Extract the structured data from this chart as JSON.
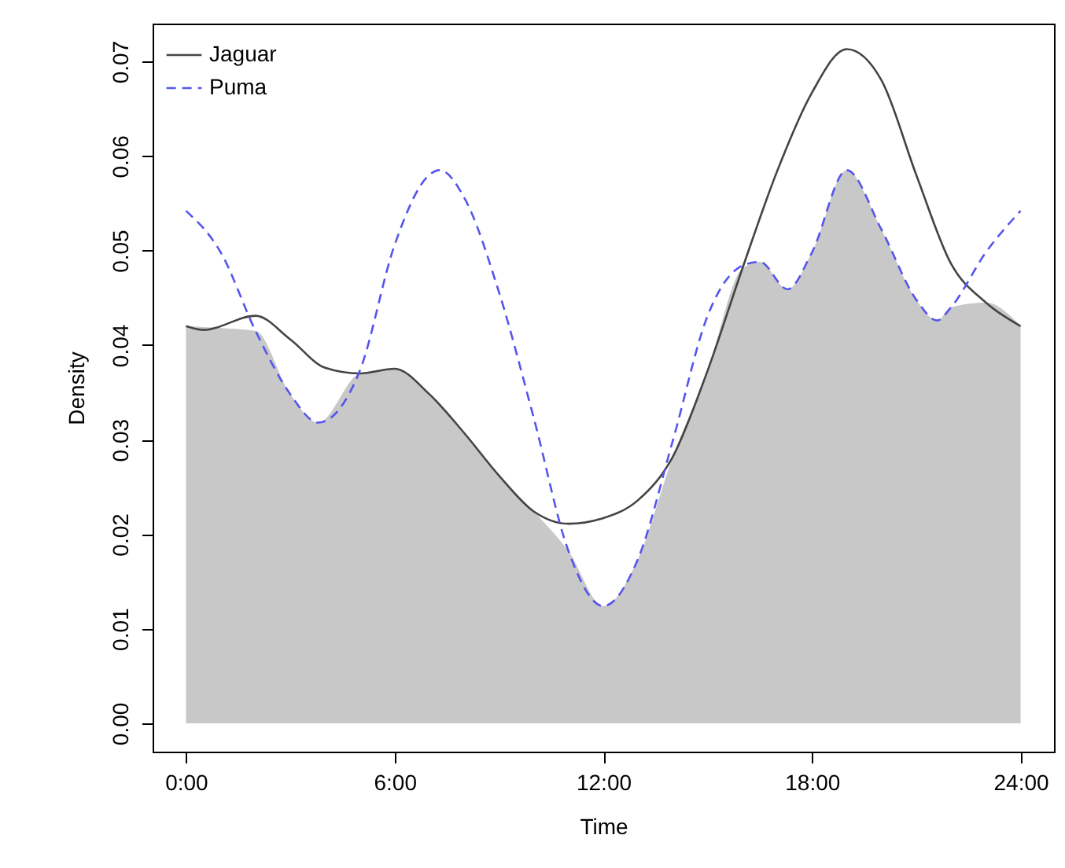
{
  "chart_data": {
    "type": "line",
    "xlabel": "Time",
    "ylabel": "Density",
    "xlim": [
      -0.96,
      24.96
    ],
    "ylim": [
      -0.003,
      0.074
    ],
    "xticks": [
      {
        "value": 0,
        "label": "0:00"
      },
      {
        "value": 6,
        "label": "6:00"
      },
      {
        "value": 12,
        "label": "12:00"
      },
      {
        "value": 18,
        "label": "18:00"
      },
      {
        "value": 24,
        "label": "24:00"
      }
    ],
    "yticks": [
      {
        "value": 0,
        "label": "0.00"
      },
      {
        "value": 0.01,
        "label": "0.01"
      },
      {
        "value": 0.02,
        "label": "0.02"
      },
      {
        "value": 0.03,
        "label": "0.03"
      },
      {
        "value": 0.04,
        "label": "0.04"
      },
      {
        "value": 0.05,
        "label": "0.05"
      },
      {
        "value": 0.06,
        "label": "0.06"
      },
      {
        "value": 0.07,
        "label": "0.07"
      }
    ],
    "grid": false,
    "legend": "top left",
    "series": [
      {
        "type": "area",
        "color": "#c8c8c8",
        "x": [
          0,
          1,
          2,
          3,
          3.8,
          5,
          6,
          7,
          8,
          9,
          10,
          11,
          12,
          13,
          14,
          15,
          16,
          16.5,
          17.3,
          18,
          19,
          20,
          21,
          21.6,
          22,
          23,
          24
        ],
        "values": [
          0.042,
          0.0418,
          0.0415,
          0.0348,
          0.0318,
          0.037,
          0.0375,
          0.0348,
          0.0307,
          0.0262,
          0.0224,
          0.0182,
          0.0124,
          0.0174,
          0.0282,
          0.0373,
          0.0481,
          0.0488,
          0.0459,
          0.0498,
          0.0585,
          0.0522,
          0.0448,
          0.0426,
          0.044,
          0.0445,
          0.042
        ]
      },
      {
        "name": "Jaguar",
        "color": "#444444",
        "line_style": "solid",
        "x": [
          0,
          0.5,
          2,
          3,
          4,
          5,
          6,
          7,
          8,
          9,
          10,
          11,
          12,
          13,
          14,
          15,
          16,
          17,
          18,
          19,
          20,
          21,
          22,
          23,
          24
        ],
        "values": [
          0.042,
          0.0416,
          0.0431,
          0.0406,
          0.0376,
          0.037,
          0.0375,
          0.0348,
          0.0307,
          0.0262,
          0.0224,
          0.0211,
          0.0217,
          0.0236,
          0.0282,
          0.0373,
          0.0481,
          0.0584,
          0.0667,
          0.0713,
          0.068,
          0.058,
          0.0486,
          0.0445,
          0.042
        ]
      },
      {
        "name": "Puma",
        "color": "#5555ee",
        "line_style": "dashed",
        "x": [
          0,
          1,
          2,
          3,
          3.8,
          5,
          6,
          7,
          7.3,
          8,
          9,
          10,
          11,
          12,
          13,
          14,
          15,
          16,
          16.5,
          17.3,
          18,
          19,
          20,
          21,
          21.6,
          22,
          23,
          24
        ],
        "values": [
          0.0542,
          0.0498,
          0.0415,
          0.0348,
          0.0318,
          0.0373,
          0.0506,
          0.058,
          0.0585,
          0.0556,
          0.0456,
          0.0323,
          0.0182,
          0.0124,
          0.0174,
          0.0299,
          0.0431,
          0.0484,
          0.0488,
          0.0459,
          0.0498,
          0.0585,
          0.0522,
          0.0448,
          0.0426,
          0.044,
          0.0498,
          0.0542
        ]
      }
    ]
  }
}
